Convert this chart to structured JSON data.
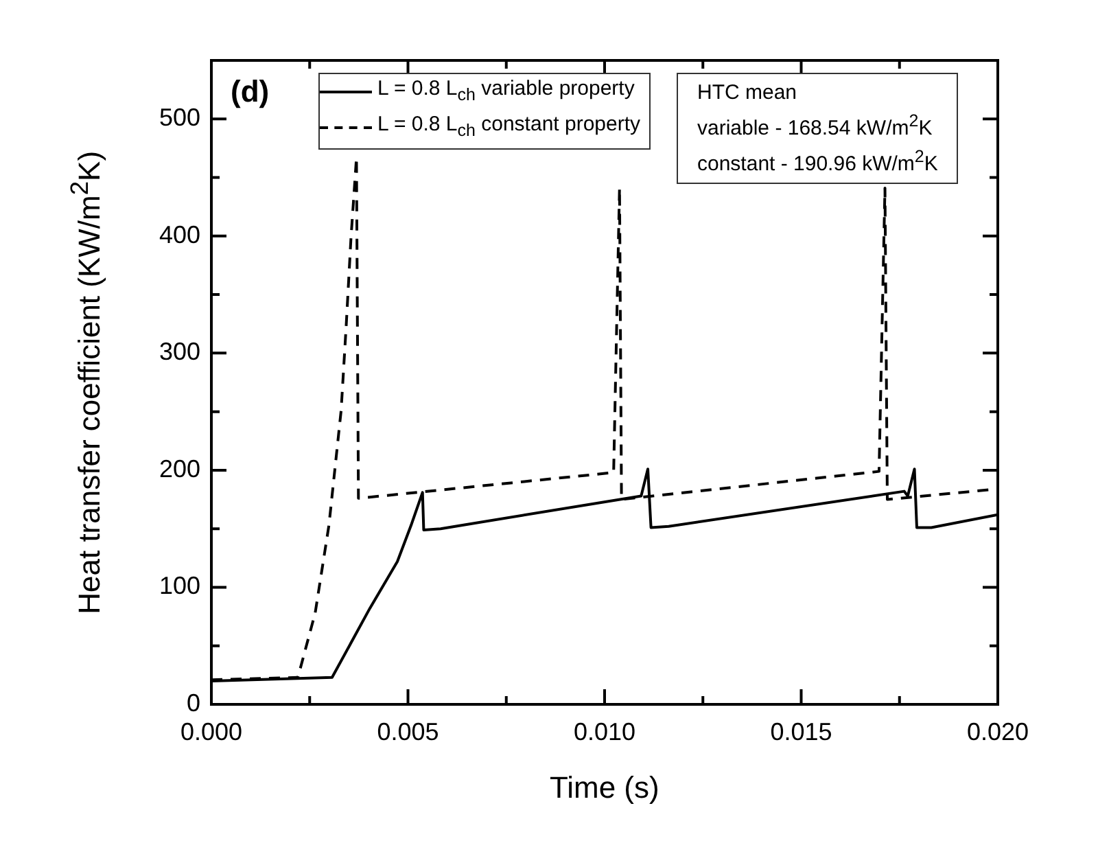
{
  "chart_data": {
    "type": "line",
    "xlabel": "Time (s)",
    "ylabel": "Heat transfer coefficient (KW/m$^{2}$K)",
    "xlim": [
      0,
      0.02
    ],
    "ylim": [
      0,
      550
    ],
    "xticks": [
      {
        "value": 0,
        "label": "0.000"
      },
      {
        "value": 0.0025,
        "label": null
      },
      {
        "value": 0.005,
        "label": "0.005"
      },
      {
        "value": 0.0075,
        "label": null
      },
      {
        "value": 0.01,
        "label": "0.010"
      },
      {
        "value": 0.0125,
        "label": null
      },
      {
        "value": 0.015,
        "label": "0.015"
      },
      {
        "value": 0.0175,
        "label": null
      },
      {
        "value": 0.02,
        "label": "0.020"
      }
    ],
    "yticks": [
      0,
      {
        "value": 50,
        "label": null
      },
      100,
      {
        "value": 150,
        "label": null
      },
      200,
      {
        "value": 250,
        "label": null
      },
      300,
      {
        "value": 350,
        "label": null
      },
      400,
      {
        "value": 450,
        "label": null
      },
      500
    ],
    "grid": false,
    "legend": "top left",
    "annotations": [
      "(d)",
      "HTC mean",
      "variable - 168.54 kW/m$^{2}$K",
      "constant - 190.96 kW/m$^{2}$K"
    ],
    "series": [
      {
        "name": "L = 0.8 L$_{ch}$ variable property",
        "color": "#000000",
        "line_style": "solid",
        "x": [
          0,
          0.00307,
          0.00403,
          0.00473,
          0.00508,
          0.00537,
          0.0054,
          0.00583,
          0.01093,
          0.0111,
          0.01118,
          0.0112,
          0.01163,
          0.01762,
          0.01771,
          0.01788,
          0.01794,
          0.01831,
          0.02
        ],
        "values": [
          20,
          23,
          82,
          122,
          153,
          181,
          149,
          150,
          178,
          201,
          151,
          151,
          152,
          182,
          178,
          201,
          151,
          151,
          162
        ]
      },
      {
        "name": "L = 0.8 L$_{ch}$ constant property",
        "color": "#000000",
        "line_style": "dashed",
        "x": [
          0,
          0.0022,
          0.00264,
          0.00299,
          0.0033,
          0.00343,
          0.00355,
          0.00369,
          0.00374,
          0.01023,
          0.01038,
          0.01043,
          0.01698,
          0.01713,
          0.01719,
          0.02
        ],
        "values": [
          21,
          23,
          78,
          153,
          251,
          324,
          398,
          467,
          176,
          198,
          441,
          175,
          199,
          441,
          175,
          184
        ]
      }
    ]
  }
}
